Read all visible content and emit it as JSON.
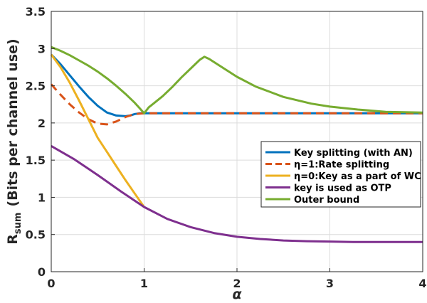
{
  "chart_data": {
    "type": "line",
    "title": "",
    "xlabel": "α",
    "ylabel": "R",
    "ylabel_sub": "sum",
    "ylabel_rest": "(Bits per channel use)",
    "xlim": [
      0,
      4
    ],
    "ylim": [
      0,
      3.5
    ],
    "xticks": [
      "0",
      "1",
      "2",
      "3",
      "4"
    ],
    "yticks": [
      "0",
      "0.5",
      "1",
      "1.5",
      "2",
      "2.5",
      "3",
      "3.5"
    ],
    "grid": true,
    "legend_position": "right",
    "series": [
      {
        "name": "Key splitting (with AN)",
        "color": "#0072BD",
        "dash": "solid",
        "x": [
          0,
          0.1,
          0.2,
          0.3,
          0.4,
          0.5,
          0.6,
          0.7,
          0.8,
          0.85,
          0.9,
          0.95,
          1.0,
          1.5,
          2.0,
          2.5,
          3.0,
          3.5,
          4.0
        ],
        "y": [
          2.92,
          2.79,
          2.64,
          2.49,
          2.35,
          2.23,
          2.14,
          2.1,
          2.09,
          2.1,
          2.12,
          2.13,
          2.13,
          2.13,
          2.13,
          2.13,
          2.13,
          2.13,
          2.13
        ]
      },
      {
        "name": "η=1:Rate splitting",
        "color": "#D95319",
        "dash": "dashed",
        "x": [
          0,
          0.1,
          0.2,
          0.3,
          0.4,
          0.5,
          0.6,
          0.7,
          0.8,
          0.9,
          1.0,
          1.5,
          2.0,
          2.5,
          3.0,
          3.5,
          4.0
        ],
        "y": [
          2.52,
          2.38,
          2.25,
          2.14,
          2.05,
          1.99,
          1.98,
          2.02,
          2.08,
          2.12,
          2.13,
          2.13,
          2.13,
          2.13,
          2.13,
          2.13,
          2.13
        ]
      },
      {
        "name": "η=0:Key as a part of WC",
        "color": "#EDB120",
        "dash": "solid",
        "x": [
          0,
          0.1,
          0.2,
          0.3,
          0.4,
          0.5,
          0.6,
          0.7,
          0.8,
          0.9,
          1.0
        ],
        "y": [
          2.92,
          2.75,
          2.54,
          2.3,
          2.05,
          1.8,
          1.61,
          1.42,
          1.23,
          1.05,
          0.87
        ]
      },
      {
        "name": "key is used as OTP",
        "color": "#7E2F8E",
        "dash": "solid",
        "x": [
          0,
          0.25,
          0.5,
          0.75,
          1.0,
          1.25,
          1.5,
          1.75,
          2.0,
          2.25,
          2.5,
          2.75,
          3.0,
          3.25,
          3.5,
          3.75,
          4.0
        ],
        "y": [
          1.69,
          1.51,
          1.3,
          1.08,
          0.87,
          0.71,
          0.6,
          0.52,
          0.47,
          0.44,
          0.42,
          0.41,
          0.405,
          0.4,
          0.4,
          0.4,
          0.4
        ]
      },
      {
        "name": "Outer bound",
        "color": "#77AC30",
        "dash": "solid",
        "x": [
          0,
          0.1,
          0.2,
          0.3,
          0.4,
          0.5,
          0.6,
          0.7,
          0.8,
          0.9,
          0.95,
          1.0,
          1.05,
          1.1,
          1.2,
          1.3,
          1.4,
          1.5,
          1.6,
          1.65,
          1.7,
          1.8,
          2.0,
          2.2,
          2.5,
          2.8,
          3.0,
          3.3,
          3.6,
          4.0
        ],
        "y": [
          3.02,
          2.97,
          2.91,
          2.84,
          2.77,
          2.69,
          2.6,
          2.5,
          2.39,
          2.27,
          2.2,
          2.13,
          2.21,
          2.26,
          2.36,
          2.48,
          2.61,
          2.73,
          2.85,
          2.89,
          2.86,
          2.78,
          2.62,
          2.49,
          2.35,
          2.26,
          2.22,
          2.18,
          2.15,
          2.14
        ]
      }
    ]
  }
}
